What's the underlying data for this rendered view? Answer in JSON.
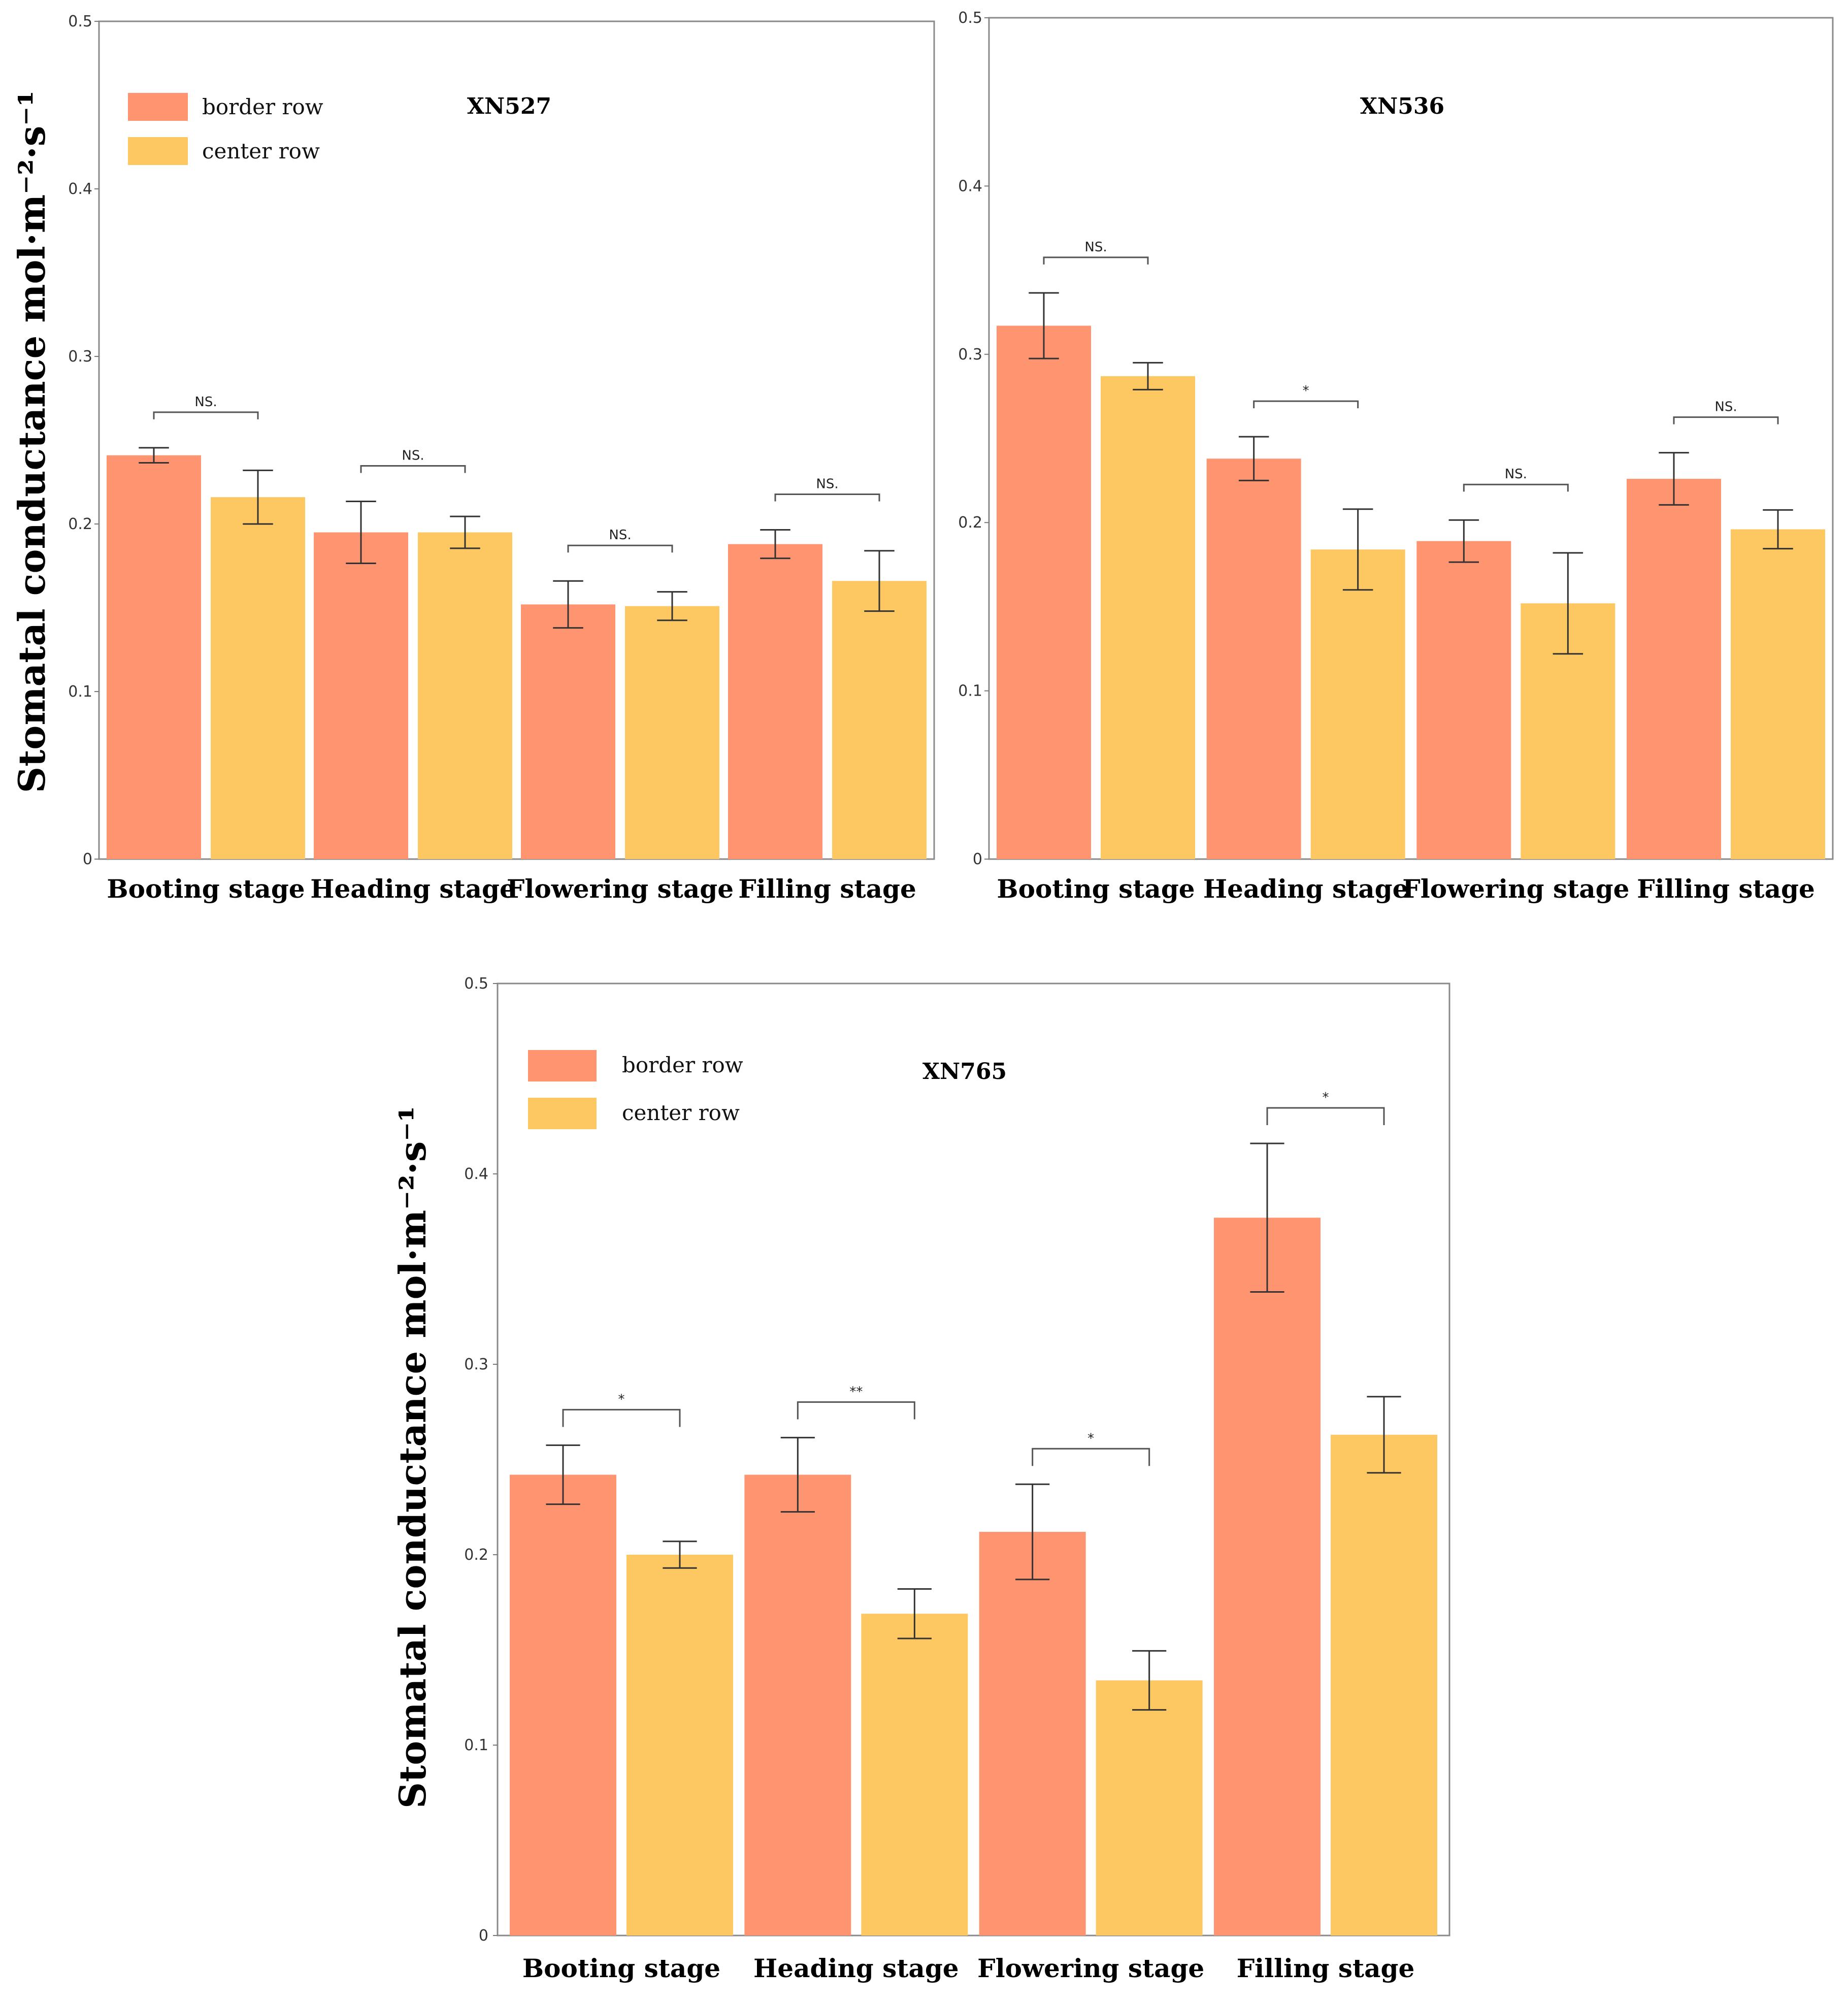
{
  "colors": {
    "border": "#FF9470",
    "center": "#FDC761",
    "axis": "#7a7a7a",
    "err": "#333333"
  },
  "y_axis_label": "Stomatal conductance mol·m⁻²·s⁻¹",
  "chart_data": [
    {
      "type": "bar",
      "title": "XN527",
      "categories": [
        "Booting stage",
        "Heading stage",
        "Flowering stage",
        "Filling stage"
      ],
      "series": [
        {
          "name": "border row",
          "values": [
            0.241,
            0.195,
            0.152,
            0.188
          ],
          "errors": [
            0.0045,
            0.0185,
            0.014,
            0.0085
          ]
        },
        {
          "name": "center row",
          "values": [
            0.216,
            0.195,
            0.151,
            0.166
          ],
          "errors": [
            0.016,
            0.0095,
            0.0085,
            0.018
          ]
        }
      ],
      "significance": [
        "NS.",
        "NS.",
        "NS.",
        "NS."
      ],
      "ylabel": "Stomatal conductance mol·m⁻²·s⁻¹",
      "ylim": [
        0,
        0.5
      ],
      "yticks": [
        "0",
        "0.1",
        "0.2",
        "0.3",
        "0.4",
        "0.5"
      ],
      "legend": "top-left"
    },
    {
      "type": "bar",
      "title": "XN536",
      "categories": [
        "Booting stage",
        "Heading stage",
        "Flowering stage",
        "Filling stage"
      ],
      "series": [
        {
          "name": "border row",
          "values": [
            0.317,
            0.238,
            0.189,
            0.226
          ],
          "errors": [
            0.0195,
            0.013,
            0.0125,
            0.0155
          ]
        },
        {
          "name": "center row",
          "values": [
            0.287,
            0.184,
            0.152,
            0.196
          ],
          "errors": [
            0.008,
            0.024,
            0.03,
            0.0115
          ]
        }
      ],
      "significance": [
        "NS.",
        "*",
        "NS.",
        "NS."
      ],
      "ylabel": "",
      "ylim": [
        0,
        0.5
      ],
      "yticks": [
        "0",
        "0.1",
        "0.2",
        "0.3",
        "0.4",
        "0.5"
      ],
      "legend": "none"
    },
    {
      "type": "bar",
      "title": "XN765",
      "categories": [
        "Booting stage",
        "Heading stage",
        "Flowering stage",
        "Filling stage"
      ],
      "series": [
        {
          "name": "border row",
          "values": [
            0.242,
            0.242,
            0.212,
            0.377
          ],
          "errors": [
            0.0155,
            0.0195,
            0.025,
            0.039
          ]
        },
        {
          "name": "center row",
          "values": [
            0.2,
            0.169,
            0.134,
            0.263
          ],
          "errors": [
            0.007,
            0.013,
            0.0155,
            0.02
          ]
        }
      ],
      "significance": [
        "*",
        "**",
        "*",
        "*"
      ],
      "ylabel": "Stomatal conductance mol·m⁻²·s⁻¹",
      "ylim": [
        0,
        0.5
      ],
      "yticks": [
        "0",
        "0.1",
        "0.2",
        "0.3",
        "0.4",
        "0.5"
      ],
      "legend": "top-left"
    }
  ]
}
